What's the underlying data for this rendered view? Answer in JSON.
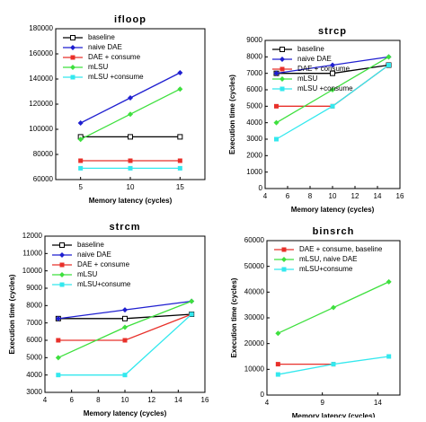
{
  "chart_data": [
    {
      "type": "line",
      "title": "ifloop",
      "x_label": "Memory latency (cycles)",
      "xlim": [
        2.5,
        17.5
      ],
      "xticks": [
        5,
        10,
        15
      ],
      "ylim": [
        60000,
        180000
      ],
      "yticks": [
        60000,
        80000,
        100000,
        120000,
        140000,
        160000,
        180000
      ],
      "legend": "upper left",
      "series": [
        {
          "name": "baseline",
          "color": "#000000",
          "marker": "open-square",
          "x": [
            5,
            10,
            15
          ],
          "values": [
            94000,
            94000,
            94000
          ]
        },
        {
          "name": "naive DAE",
          "color": "#1f1fd0",
          "marker": "diamond",
          "x": [
            5,
            10,
            15
          ],
          "values": [
            105000,
            125000,
            145000
          ]
        },
        {
          "name": "DAE + consume",
          "color": "#e8302a",
          "marker": "square",
          "x": [
            5,
            10,
            15
          ],
          "values": [
            75000,
            75000,
            75000
          ]
        },
        {
          "name": "mLSU",
          "color": "#3ee03e",
          "marker": "diamond",
          "x": [
            5,
            10,
            15
          ],
          "values": [
            92000,
            112000,
            132000
          ]
        },
        {
          "name": "mLSU +consume",
          "color": "#33e8ee",
          "marker": "square",
          "x": [
            5,
            10,
            15
          ],
          "values": [
            69000,
            69000,
            69000
          ]
        }
      ]
    },
    {
      "type": "line",
      "title": "strcp",
      "x_label": "Memory latency (cycles)",
      "y_label": "Execution time (cycles)",
      "xlim": [
        4,
        16
      ],
      "xticks": [
        4,
        6,
        8,
        10,
        12,
        14,
        16
      ],
      "ylim": [
        0,
        9000
      ],
      "yticks": [
        0,
        1000,
        2000,
        3000,
        4000,
        5000,
        6000,
        7000,
        8000,
        9000
      ],
      "legend": "upper left",
      "series": [
        {
          "name": "baseline",
          "color": "#000000",
          "marker": "open-square",
          "x": [
            5,
            10,
            15
          ],
          "values": [
            7000,
            7000,
            7500
          ]
        },
        {
          "name": "naive DAE",
          "color": "#1f1fd0",
          "marker": "diamond",
          "x": [
            5,
            10,
            15
          ],
          "values": [
            7000,
            7500,
            8000
          ]
        },
        {
          "name": "DAE + consume",
          "color": "#e8302a",
          "marker": "square",
          "x": [
            5,
            10,
            15
          ],
          "values": [
            5000,
            5000,
            7500
          ]
        },
        {
          "name": "mLSU",
          "color": "#3ee03e",
          "marker": "diamond",
          "x": [
            5,
            10,
            15
          ],
          "values": [
            4000,
            6000,
            8000
          ]
        },
        {
          "name": "mLSU +consume",
          "color": "#33e8ee",
          "marker": "square",
          "x": [
            5,
            10,
            15
          ],
          "values": [
            3000,
            5000,
            7500
          ]
        }
      ]
    },
    {
      "type": "line",
      "title": "strcm",
      "x_label": "Memory latency (cycles)",
      "y_label": "Execution time (cycles)",
      "xlim": [
        4,
        16
      ],
      "xticks": [
        4,
        6,
        8,
        10,
        12,
        14,
        16
      ],
      "ylim": [
        3000,
        12000
      ],
      "yticks": [
        3000,
        4000,
        5000,
        6000,
        7000,
        8000,
        9000,
        10000,
        11000,
        12000
      ],
      "legend": "upper left",
      "series": [
        {
          "name": "baseline",
          "color": "#000000",
          "marker": "open-square",
          "x": [
            5,
            10,
            15
          ],
          "values": [
            7250,
            7250,
            7500
          ]
        },
        {
          "name": "naive DAE",
          "color": "#1f1fd0",
          "marker": "diamond",
          "x": [
            5,
            10,
            15
          ],
          "values": [
            7250,
            7750,
            8250
          ]
        },
        {
          "name": "DAE + consume",
          "color": "#e8302a",
          "marker": "square",
          "x": [
            5,
            10,
            15
          ],
          "values": [
            6000,
            6000,
            7500
          ]
        },
        {
          "name": "mLSU",
          "color": "#3ee03e",
          "marker": "diamond",
          "x": [
            5,
            10,
            15
          ],
          "values": [
            5000,
            6750,
            8250
          ]
        },
        {
          "name": "mLSU+consume",
          "color": "#33e8ee",
          "marker": "square",
          "x": [
            5,
            10,
            15
          ],
          "values": [
            4000,
            4000,
            7500
          ]
        }
      ]
    },
    {
      "type": "line",
      "title": "binsrch",
      "x_label": "Memory latency (cycles)",
      "y_label": "Execution time (cycles)",
      "xlim": [
        4,
        16
      ],
      "xticks": [
        4,
        9,
        14
      ],
      "ylim": [
        0,
        60000
      ],
      "yticks": [
        0,
        10000,
        20000,
        30000,
        40000,
        50000,
        60000
      ],
      "legend": "upper left",
      "series": [
        {
          "name": "DAE + consume, baseline",
          "color": "#e8302a",
          "marker": "square",
          "x": [
            5,
            10
          ],
          "values": [
            12000,
            12000
          ]
        },
        {
          "name": "mLSU, naive DAE",
          "color": "#3ee03e",
          "marker": "diamond",
          "x": [
            5,
            10,
            15
          ],
          "values": [
            24000,
            34000,
            44000
          ]
        },
        {
          "name": "mLSU+consume",
          "color": "#33e8ee",
          "marker": "square",
          "x": [
            5,
            10,
            15
          ],
          "values": [
            8000,
            12000,
            15000
          ]
        }
      ]
    }
  ]
}
